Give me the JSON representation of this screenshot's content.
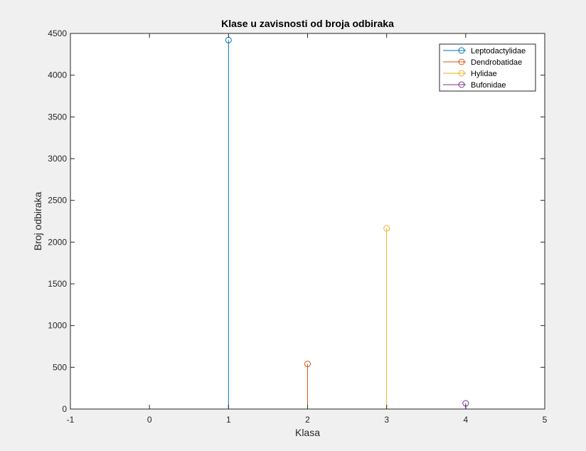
{
  "chart_data": {
    "type": "stem",
    "title": "Klase u zavisnosti od broja odbiraka",
    "xlabel": "Klasa",
    "ylabel": "Broj odbiraka",
    "xlim": [
      -1,
      5
    ],
    "ylim": [
      0,
      4500
    ],
    "xticks": [
      "-1",
      "0",
      "1",
      "2",
      "3",
      "4",
      "5"
    ],
    "yticks": [
      "0",
      "500",
      "1000",
      "1500",
      "2000",
      "2500",
      "3000",
      "3500",
      "4000",
      "4500"
    ],
    "grid": false,
    "legend_position": "top-right",
    "series": [
      {
        "name": "Leptodactylidae",
        "x": 1,
        "y": 4420,
        "color": "#0072bd"
      },
      {
        "name": "Dendrobatidae",
        "x": 2,
        "y": 540,
        "color": "#d95319"
      },
      {
        "name": "Hylidae",
        "x": 3,
        "y": 2165,
        "color": "#edb120"
      },
      {
        "name": "Bufonidae",
        "x": 4,
        "y": 68,
        "color": "#7e2f8e"
      }
    ]
  }
}
